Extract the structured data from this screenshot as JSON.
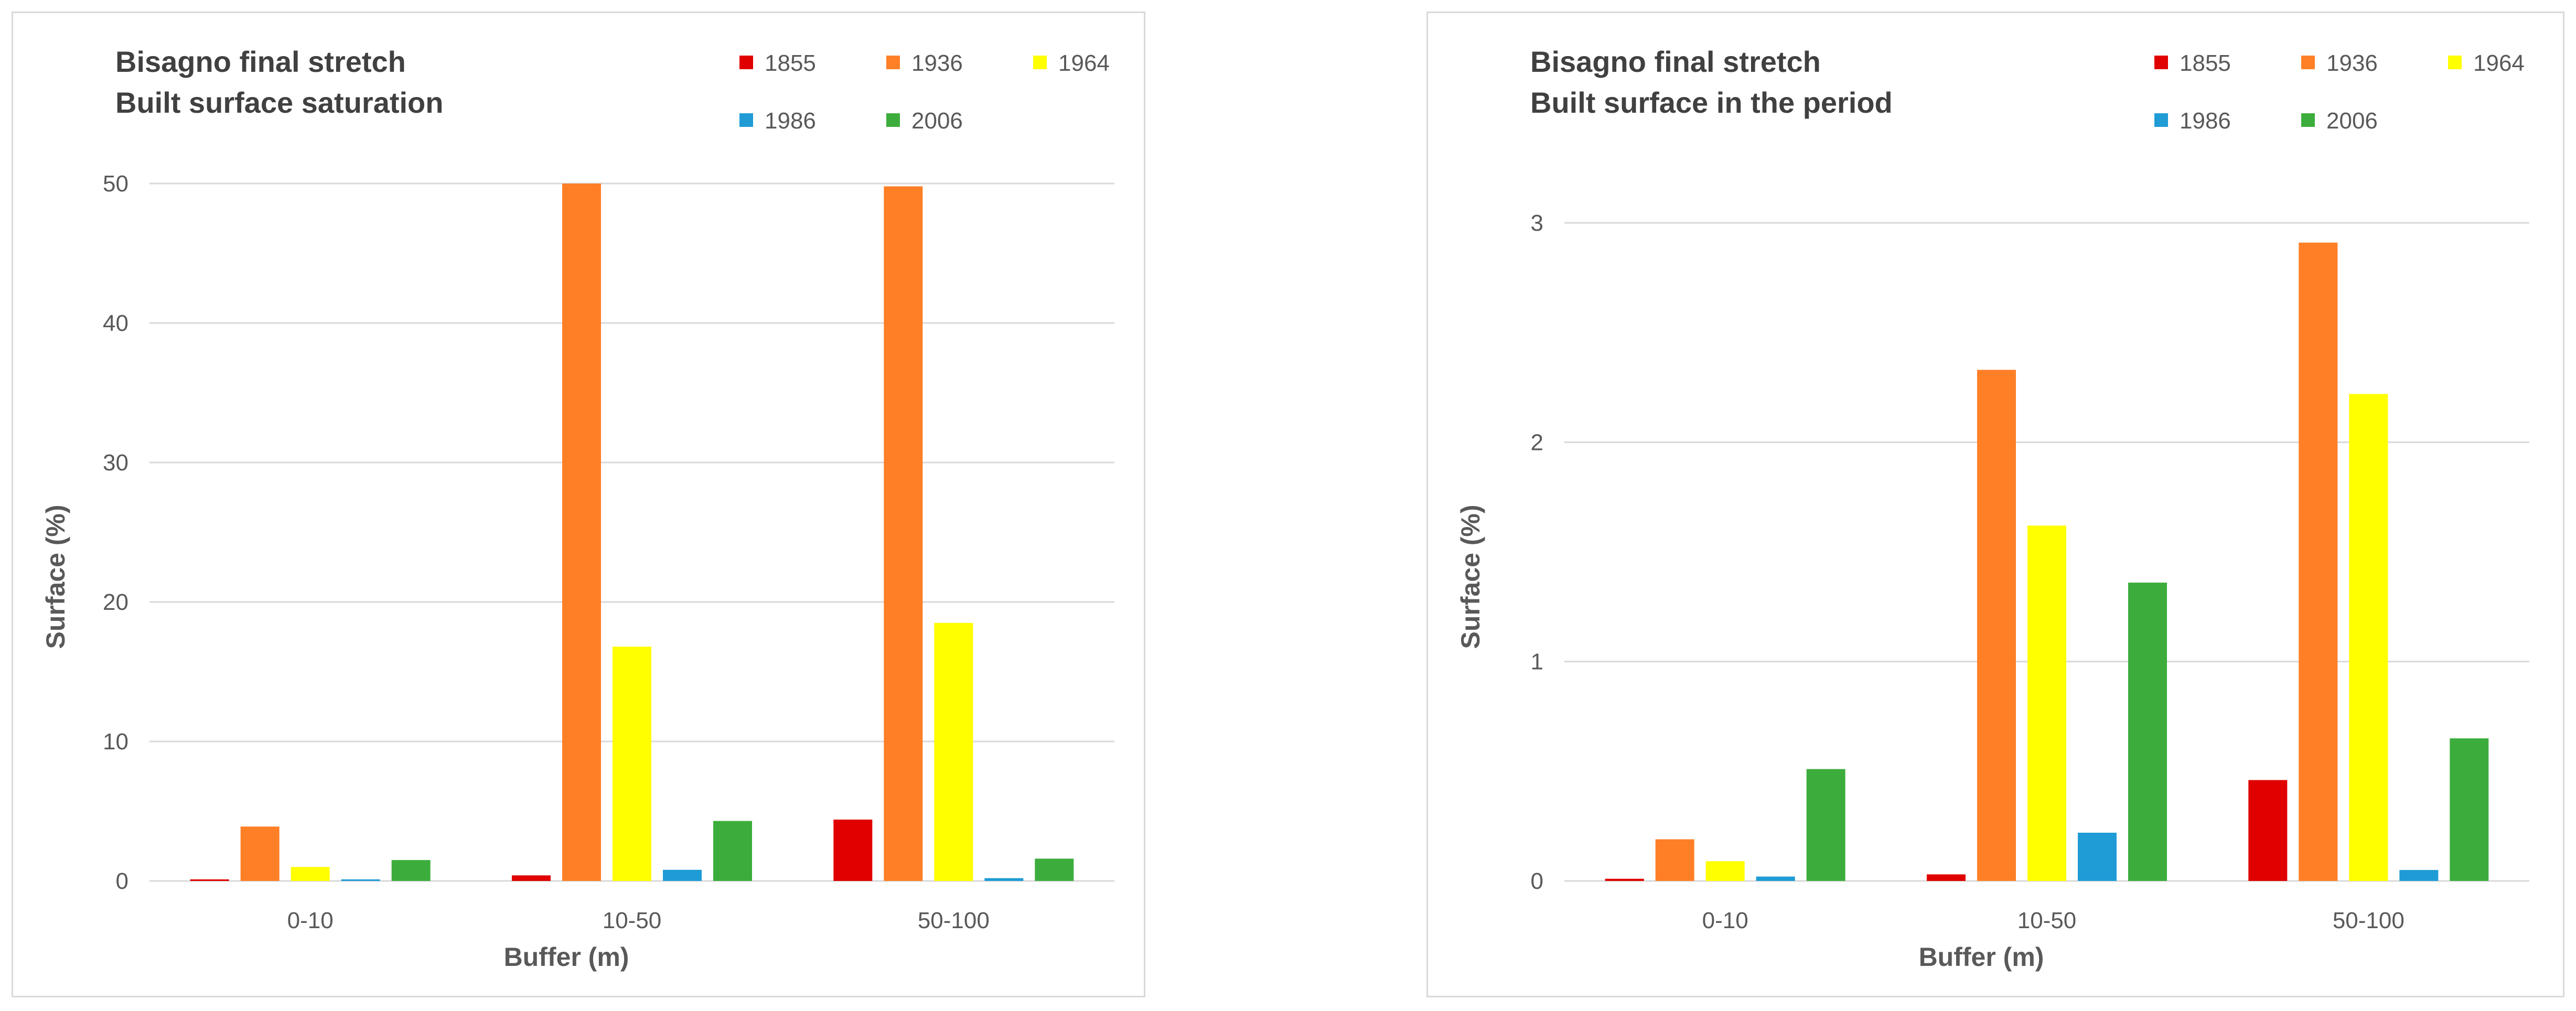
{
  "chart_data": [
    {
      "type": "bar",
      "title": "Bisagno final stretch",
      "subtitle": "Built surface saturation",
      "xlabel": "Buffer (m)",
      "ylabel": "Surface (%)",
      "categories": [
        "0-10",
        "10-50",
        "50-100"
      ],
      "ylim": [
        0,
        50
      ],
      "yticks": [
        "0",
        "10",
        "20",
        "30",
        "40",
        "50"
      ],
      "grid": true,
      "legend_position": "top-right",
      "series": [
        {
          "name": "1855",
          "color": "#e00000",
          "values": [
            0.1,
            0.4,
            4.4
          ]
        },
        {
          "name": "1936",
          "color": "#ff7f27",
          "values": [
            3.9,
            50,
            49.8
          ]
        },
        {
          "name": "1964",
          "color": "#ffff00",
          "values": [
            1.0,
            16.8,
            18.5
          ]
        },
        {
          "name": "1986",
          "color": "#1f9bd6",
          "values": [
            0.1,
            0.8,
            0.2
          ]
        },
        {
          "name": "2006",
          "color": "#3cad3c",
          "values": [
            1.5,
            4.3,
            1.6
          ]
        }
      ]
    },
    {
      "type": "bar",
      "title": "Bisagno final stretch",
      "subtitle": "Built surface in the period",
      "xlabel": "Buffer (m)",
      "ylabel": "Surface (%)",
      "categories": [
        "0-10",
        "10-50",
        "50-100"
      ],
      "ylim": [
        0,
        3
      ],
      "yticks": [
        "0",
        "1",
        "2",
        "3"
      ],
      "grid": true,
      "legend_position": "top-right",
      "series": [
        {
          "name": "1855",
          "color": "#e00000",
          "values": [
            0.01,
            0.03,
            0.46
          ]
        },
        {
          "name": "1936",
          "color": "#ff7f27",
          "values": [
            0.19,
            2.33,
            2.91
          ]
        },
        {
          "name": "1964",
          "color": "#ffff00",
          "values": [
            0.09,
            1.62,
            2.22
          ]
        },
        {
          "name": "1986",
          "color": "#1f9bd6",
          "values": [
            0.02,
            0.22,
            0.05
          ]
        },
        {
          "name": "2006",
          "color": "#3cad3c",
          "values": [
            0.51,
            1.36,
            0.65
          ]
        }
      ]
    }
  ]
}
